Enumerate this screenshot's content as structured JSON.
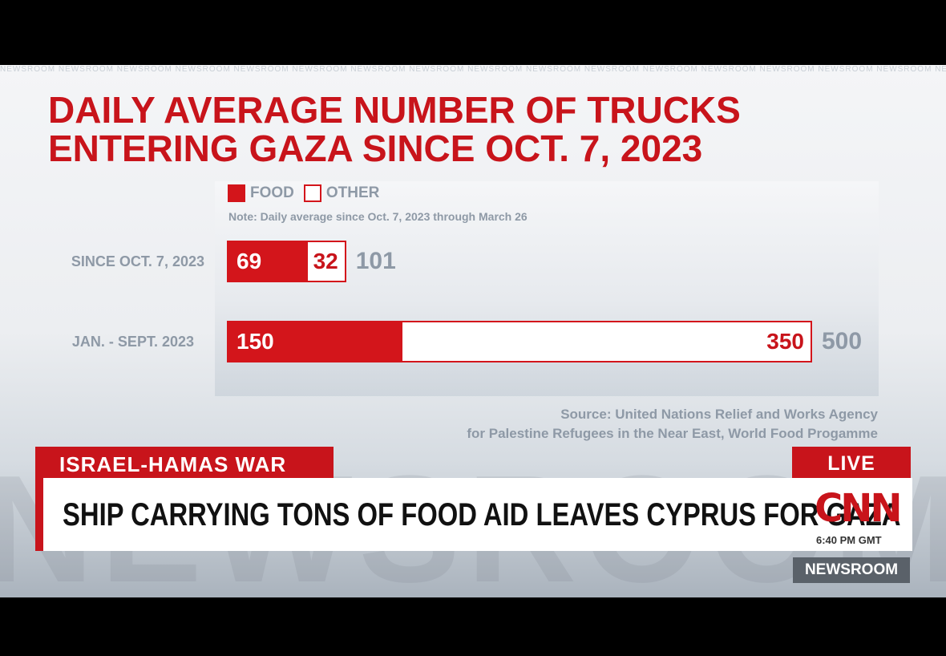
{
  "chart_data": {
    "type": "bar",
    "title": "DAILY AVERAGE NUMBER OF TRUCKS ENTERING GAZA SINCE OCT. 7, 2023",
    "note": "Note: Daily average since Oct. 7, 2023 through March 26",
    "legend": [
      "FOOD",
      "OTHER"
    ],
    "categories": [
      "SINCE OCT. 7, 2023",
      "JAN. - SEPT. 2023"
    ],
    "series": [
      {
        "name": "FOOD",
        "values": [
          69,
          150
        ]
      },
      {
        "name": "OTHER",
        "values": [
          32,
          350
        ]
      }
    ],
    "totals": [
      101,
      500
    ],
    "stacked": true,
    "orientation": "horizontal",
    "xlim": [
      0,
      500
    ],
    "source": [
      "Source: United Nations Relief and Works Agency",
      "for Palestine Refugees in the Near East, World Food Progamme"
    ],
    "colors": {
      "food": "#d3151b",
      "other": "#ffffff"
    }
  },
  "watermark": "NEWSROOM",
  "lower_third": {
    "tag": "ISRAEL-HAMAS WAR",
    "live": "LIVE",
    "headline": "SHIP CARRYING TONS OF FOOD AID LEAVES CYPRUS FOR GAZA",
    "logo": "CNN",
    "time": "6:40 PM GMT",
    "show": "NEWSROOM"
  }
}
